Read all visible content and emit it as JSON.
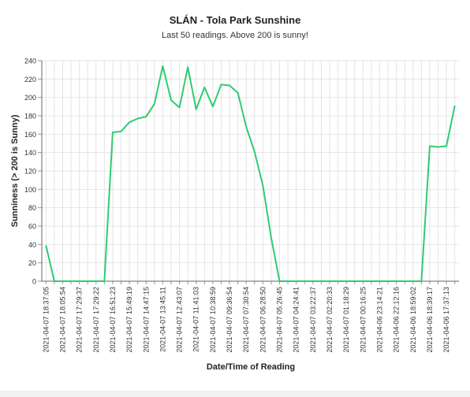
{
  "chart_data": {
    "type": "line",
    "title": "SLÁN - Tola Park Sunshine",
    "subtitle": "Last 50 readings. Above 200 is sunny!",
    "xlabel": "Date/Time of Reading",
    "ylabel": "Sunniness (> 200 is Sunny)",
    "ylim": [
      0,
      240
    ],
    "yticks": [
      0,
      20,
      40,
      60,
      80,
      100,
      120,
      140,
      160,
      180,
      200,
      220,
      240
    ],
    "grid": true,
    "x_tick_labels": [
      "2021-04-07 18:37:05",
      "2021-04-07 18:05:54",
      "2021-04-07 17:29:37",
      "2021-04-07 17:29:22",
      "2021-04-07 16:51:23",
      "2021-04-07 15:49:19",
      "2021-04-07 14:47:15",
      "2021-04-07 13:45:11",
      "2021-04-07 12:43:07",
      "2021-04-07 11:41:03",
      "2021-04-07 10:38:59",
      "2021-04-07 09:36:54",
      "2021-04-07 07:30:54",
      "2021-04-07 06:28:50",
      "2021-04-07 05:26:45",
      "2021-04-07 04:24:41",
      "2021-04-07 03:22:37",
      "2021-04-07 02:20:33",
      "2021-04-07 01:18:29",
      "2021-04-07 00:16:25",
      "2021-04-06 23:14:21",
      "2021-04-06 22:12:16",
      "2021-04-06 18:59:02",
      "2021-04-06 18:39:17",
      "2021-04-06 17:37:13"
    ],
    "series": [
      {
        "color": "#2ecc71",
        "values": [
          39,
          0,
          0,
          0,
          0,
          0,
          0,
          0,
          162,
          163,
          173,
          177,
          179,
          193,
          234,
          197,
          189,
          233,
          187,
          211,
          190,
          214,
          213,
          205,
          168,
          141,
          104,
          47,
          0,
          0,
          0,
          0,
          0,
          0,
          0,
          0,
          0,
          0,
          0,
          0,
          0,
          0,
          0,
          0,
          0,
          0,
          147,
          146,
          147,
          191
        ]
      }
    ]
  }
}
